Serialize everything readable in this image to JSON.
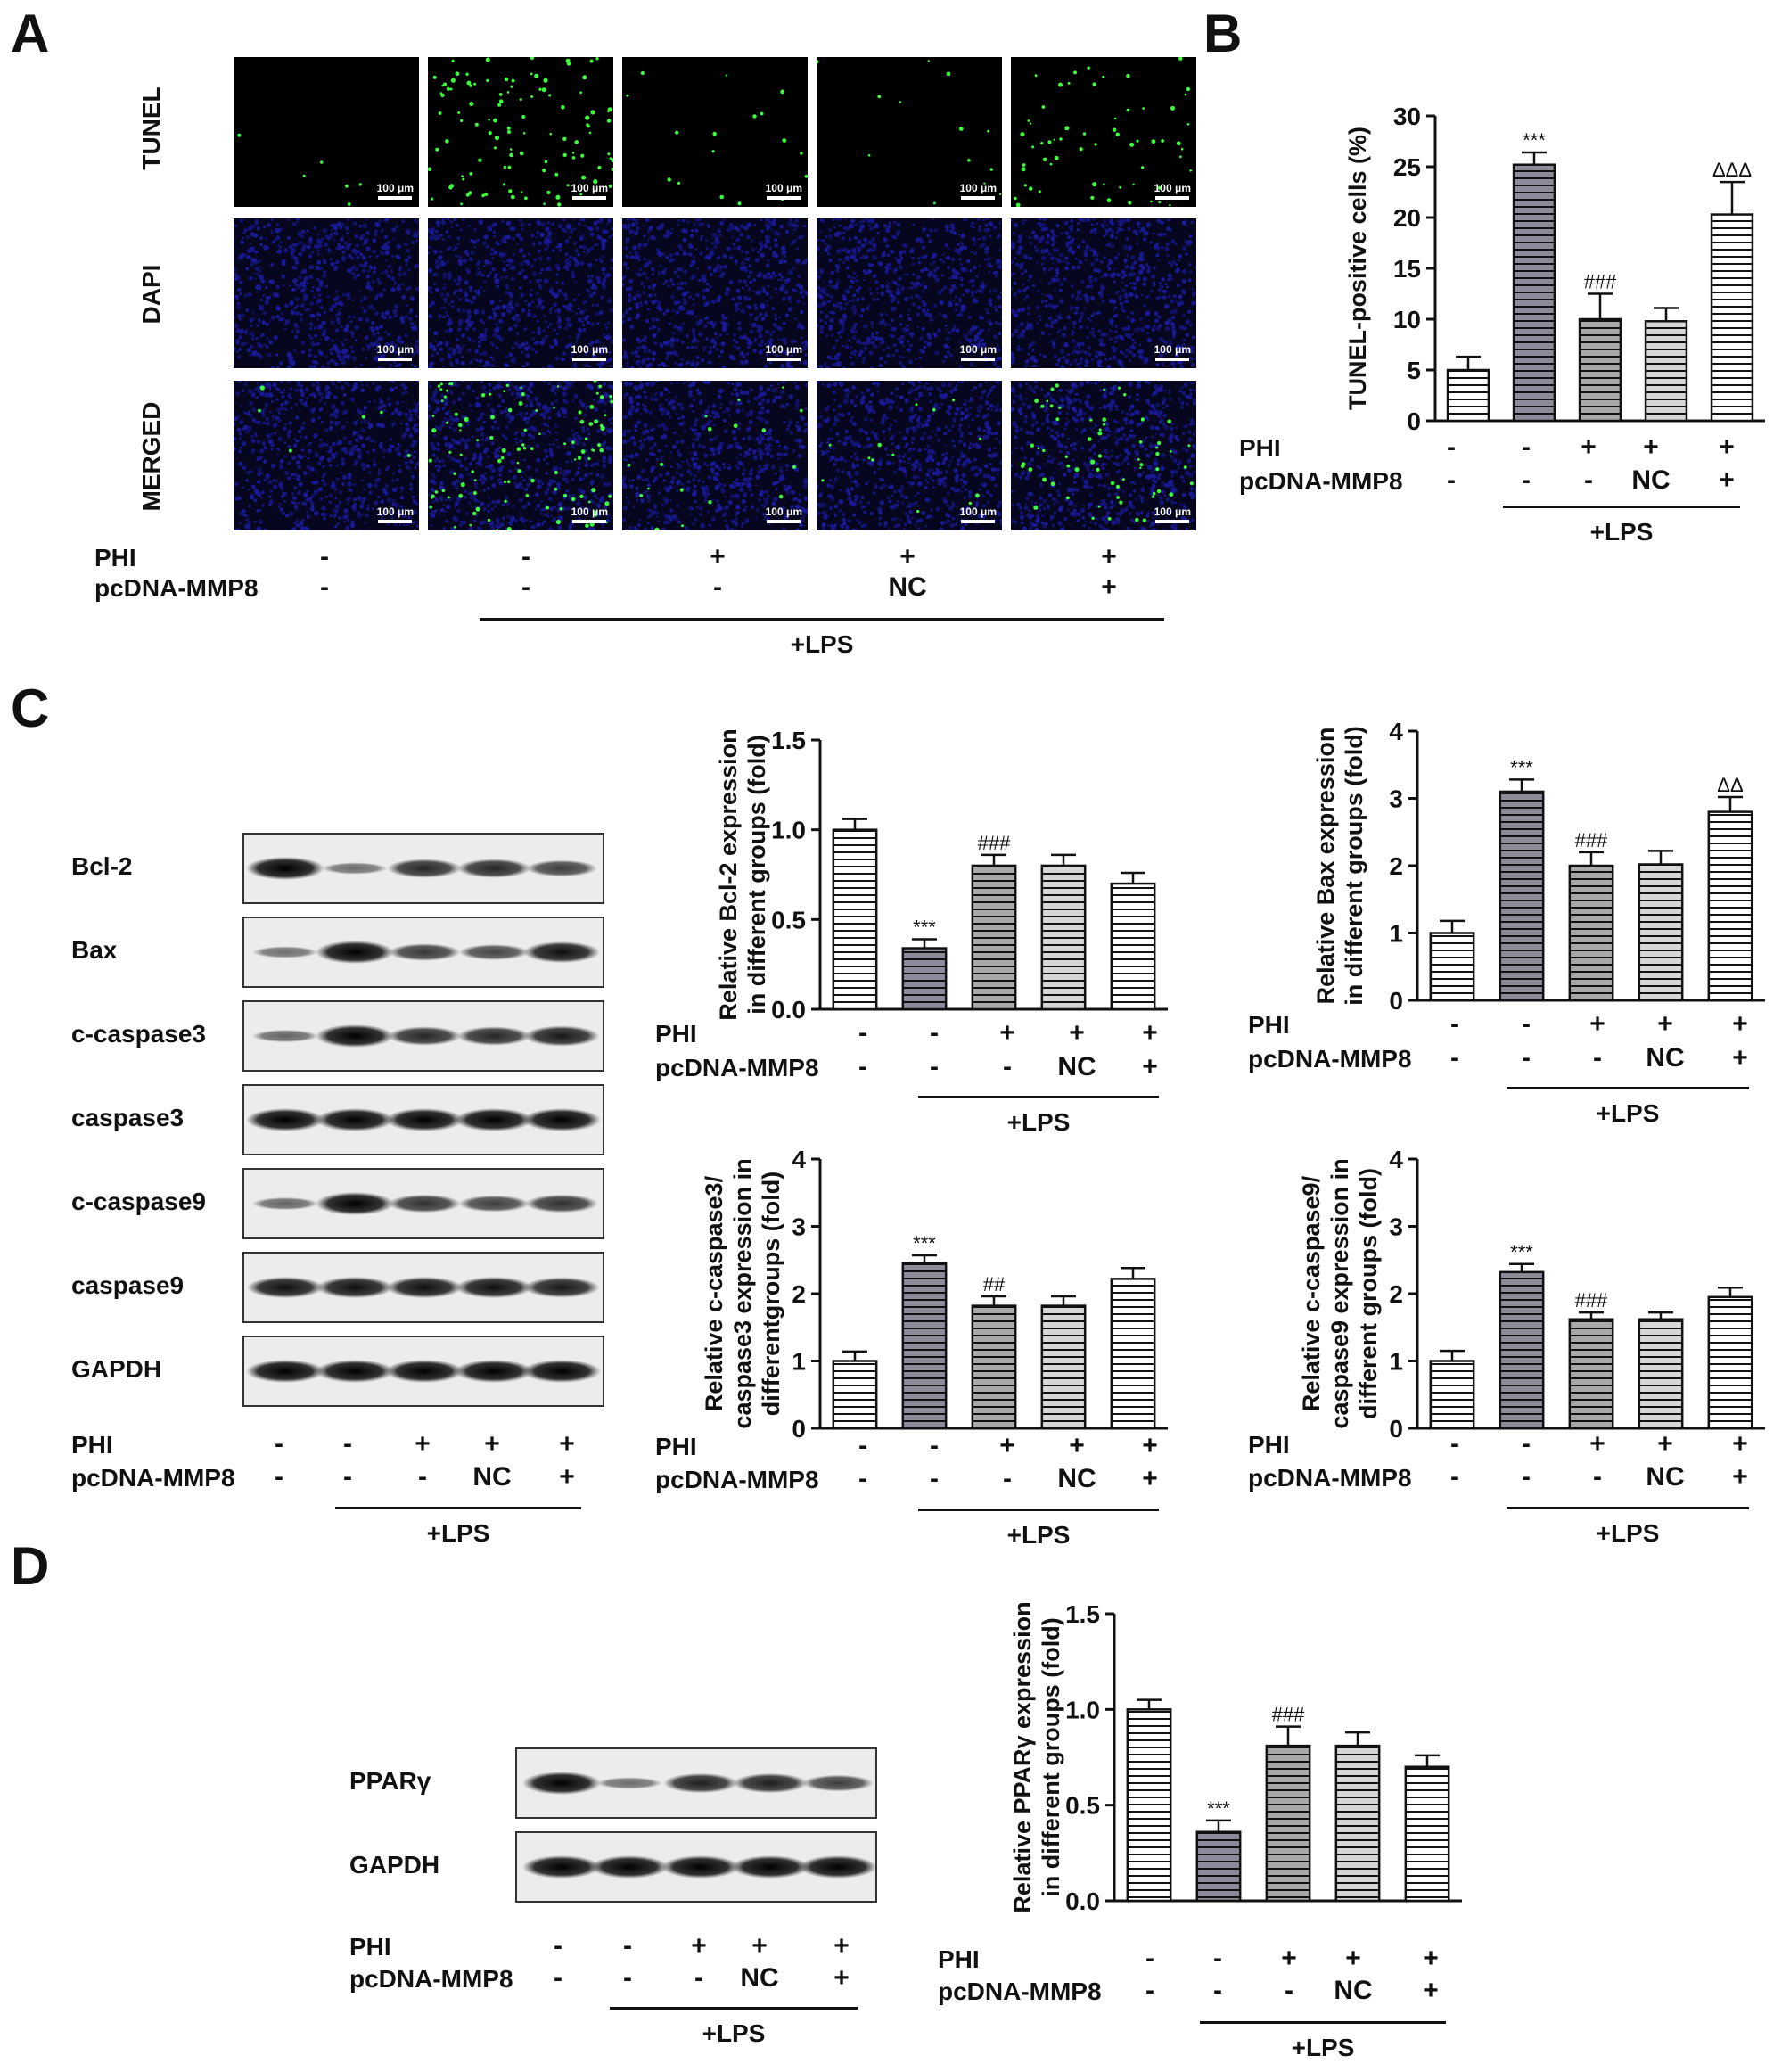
{
  "panels": {
    "A": "A",
    "B": "B",
    "C": "C",
    "D": "D"
  },
  "panelA": {
    "rows": [
      "TUNEL",
      "DAPI",
      "MERGED"
    ],
    "scale_label": "100 μm",
    "row_styles": {
      "TUNEL": {
        "bg": "#000000",
        "dots": [
          0.05,
          1.0,
          0.15,
          0.12,
          0.55
        ],
        "dot_color": "#39ff39"
      },
      "DAPI": {
        "bg": "#06061f",
        "nuclei_color": "#1a1a9a"
      },
      "MERGED": {
        "bg": "#06061f",
        "nuclei_color": "#1a1a9a",
        "dot_color": "#39ff39",
        "dots": [
          0.05,
          1.0,
          0.15,
          0.12,
          0.55
        ]
      }
    }
  },
  "treatment": {
    "phi_label": "PHI",
    "pcdna_label": "pcDNA-MMP8",
    "phi": [
      "-",
      "-",
      "+",
      "+",
      "+"
    ],
    "pcdna": [
      "-",
      "-",
      "-",
      "NC",
      "+"
    ],
    "lps_label": "+LPS"
  },
  "blotsC": [
    "Bcl-2",
    "Bax",
    "c-caspase3",
    "caspase3",
    "c-caspase9",
    "caspase9",
    "GAPDH"
  ],
  "blotsC_intensity": {
    "Bcl-2": [
      1.0,
      0.3,
      0.75,
      0.75,
      0.6
    ],
    "Bax": [
      0.3,
      1.0,
      0.65,
      0.55,
      0.9
    ],
    "c-caspase3": [
      0.35,
      1.0,
      0.75,
      0.75,
      0.85
    ],
    "caspase3": [
      1,
      1,
      1,
      1,
      1
    ],
    "c-caspase9": [
      0.35,
      1.0,
      0.7,
      0.6,
      0.7
    ],
    "caspase9": [
      0.9,
      0.9,
      0.9,
      0.9,
      0.85
    ],
    "GAPDH": [
      1,
      1,
      1,
      1,
      1
    ]
  },
  "blotsD": [
    "PPARγ",
    "GAPDH"
  ],
  "blotsD_intensity": {
    "PPARγ": [
      1.0,
      0.3,
      0.8,
      0.8,
      0.6
    ],
    "GAPDH": [
      1,
      1,
      1,
      1,
      1
    ]
  },
  "chart_data": [
    {
      "id": "B",
      "type": "bar",
      "ylabel": "TUNEL-positive cells (%)",
      "ylim": [
        0,
        30
      ],
      "yticks": [
        "0",
        "5",
        "10",
        "15",
        "20",
        "25",
        "30"
      ],
      "values": [
        5,
        25.2,
        10,
        9.8,
        20.3
      ],
      "errors": [
        1.3,
        1.2,
        2.5,
        1.3,
        3.2
      ],
      "annotations": [
        "",
        "***",
        "###",
        "",
        "ΔΔΔ"
      ],
      "fills": [
        "white",
        "dark",
        "mid",
        "light",
        "white"
      ]
    },
    {
      "id": "C1",
      "type": "bar",
      "ylabel": "Relative Bcl-2 expression\nin different groups (fold)",
      "ylim": [
        0,
        1.5
      ],
      "yticks": [
        "0.0",
        "0.5",
        "1.0",
        "1.5"
      ],
      "values": [
        1.0,
        0.34,
        0.8,
        0.8,
        0.7
      ],
      "errors": [
        0.06,
        0.05,
        0.06,
        0.06,
        0.06
      ],
      "annotations": [
        "",
        "***",
        "###",
        "",
        ""
      ],
      "fills": [
        "white",
        "dark",
        "mid",
        "light",
        "white"
      ]
    },
    {
      "id": "C2",
      "type": "bar",
      "ylabel": "Relative Bax expression\nin different groups (fold)",
      "ylim": [
        0,
        4
      ],
      "yticks": [
        "0",
        "1",
        "2",
        "3",
        "4"
      ],
      "values": [
        1.0,
        3.1,
        2.0,
        2.02,
        2.8
      ],
      "errors": [
        0.18,
        0.18,
        0.2,
        0.2,
        0.22
      ],
      "annotations": [
        "",
        "***",
        "###",
        "",
        "ΔΔ"
      ],
      "fills": [
        "white",
        "dark",
        "mid",
        "light",
        "white"
      ]
    },
    {
      "id": "C3",
      "type": "bar",
      "ylabel": "Relative c-caspase3/\ncaspase3 expression in\ndifferentgroups (fold)",
      "ylim": [
        0,
        4
      ],
      "yticks": [
        "0",
        "1",
        "2",
        "3",
        "4"
      ],
      "values": [
        1.0,
        2.45,
        1.82,
        1.82,
        2.22
      ],
      "errors": [
        0.14,
        0.12,
        0.14,
        0.14,
        0.16
      ],
      "annotations": [
        "",
        "***",
        "##",
        "",
        ""
      ],
      "fills": [
        "white",
        "dark",
        "mid",
        "light",
        "white"
      ]
    },
    {
      "id": "C4",
      "type": "bar",
      "ylabel": "Relative c-caspase9/\ncaspase9 expression in\ndifferent groups (fold)",
      "ylim": [
        0,
        4
      ],
      "yticks": [
        "0",
        "1",
        "2",
        "3",
        "4"
      ],
      "values": [
        1.0,
        2.32,
        1.62,
        1.62,
        1.95
      ],
      "errors": [
        0.15,
        0.12,
        0.1,
        0.1,
        0.14
      ],
      "annotations": [
        "",
        "***",
        "###",
        "",
        ""
      ],
      "fills": [
        "white",
        "dark",
        "mid",
        "light",
        "white"
      ]
    },
    {
      "id": "D",
      "type": "bar",
      "ylabel": "Relative PPARγ expression\nin different groups (fold)",
      "ylim": [
        0,
        1.5
      ],
      "yticks": [
        "0.0",
        "0.5",
        "1.0",
        "1.5"
      ],
      "values": [
        1.0,
        0.36,
        0.81,
        0.81,
        0.7
      ],
      "errors": [
        0.05,
        0.06,
        0.1,
        0.07,
        0.06
      ],
      "annotations": [
        "",
        "***",
        "###",
        "",
        ""
      ],
      "fills": [
        "white",
        "dark",
        "mid",
        "light",
        "white"
      ]
    }
  ]
}
